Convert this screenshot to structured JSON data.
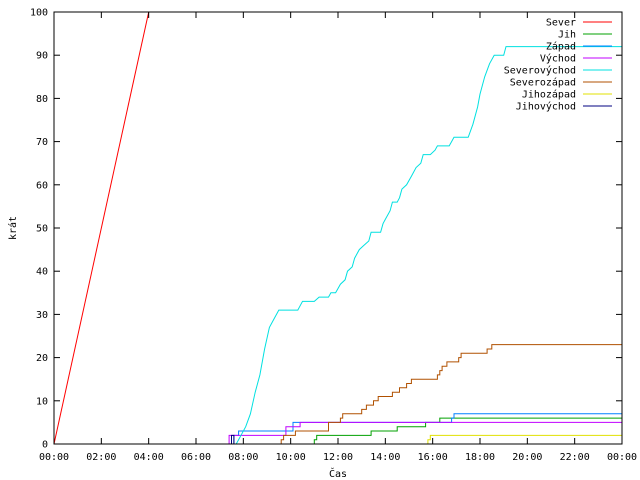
{
  "chart_data": {
    "type": "line",
    "xlabel": "Čas",
    "ylabel": "krát",
    "xlim": [
      0,
      24
    ],
    "ylim": [
      0,
      100
    ],
    "xticks": [
      {
        "v": 0,
        "label": "00:00"
      },
      {
        "v": 2,
        "label": "02:00"
      },
      {
        "v": 4,
        "label": "04:00"
      },
      {
        "v": 6,
        "label": "06:00"
      },
      {
        "v": 8,
        "label": "08:00"
      },
      {
        "v": 10,
        "label": "10:00"
      },
      {
        "v": 12,
        "label": "12:00"
      },
      {
        "v": 14,
        "label": "14:00"
      },
      {
        "v": 16,
        "label": "16:00"
      },
      {
        "v": 18,
        "label": "18:00"
      },
      {
        "v": 20,
        "label": "20:00"
      },
      {
        "v": 22,
        "label": "22:00"
      },
      {
        "v": 24,
        "label": "00:00"
      }
    ],
    "yticks": [
      {
        "v": 0,
        "label": "0"
      },
      {
        "v": 10,
        "label": "10"
      },
      {
        "v": 20,
        "label": "20"
      },
      {
        "v": 30,
        "label": "30"
      },
      {
        "v": 40,
        "label": "40"
      },
      {
        "v": 50,
        "label": "50"
      },
      {
        "v": 60,
        "label": "60"
      },
      {
        "v": 70,
        "label": "70"
      },
      {
        "v": 80,
        "label": "80"
      },
      {
        "v": 90,
        "label": "90"
      },
      {
        "v": 100,
        "label": "100"
      }
    ],
    "legend_position": "top-right",
    "series": [
      {
        "name": "Sever",
        "color": "#ff0000",
        "points": [
          [
            0,
            0
          ],
          [
            4,
            100
          ]
        ]
      },
      {
        "name": "Jih",
        "color": "#00a000",
        "points": [
          [
            0,
            0
          ],
          [
            11,
            0
          ],
          [
            11,
            1
          ],
          [
            11.1,
            1
          ],
          [
            11.1,
            2
          ],
          [
            13.4,
            2
          ],
          [
            13.4,
            3
          ],
          [
            14.5,
            3
          ],
          [
            14.5,
            4
          ],
          [
            15.7,
            4
          ],
          [
            15.7,
            5
          ],
          [
            16.3,
            5
          ],
          [
            16.3,
            6
          ],
          [
            24,
            6
          ]
        ]
      },
      {
        "name": "Západ",
        "color": "#0080ff",
        "points": [
          [
            0,
            0
          ],
          [
            7.6,
            0
          ],
          [
            7.6,
            2
          ],
          [
            7.8,
            2
          ],
          [
            7.8,
            3
          ],
          [
            10.1,
            3
          ],
          [
            10.1,
            5
          ],
          [
            16.8,
            5
          ],
          [
            16.8,
            6
          ],
          [
            16.9,
            6
          ],
          [
            16.9,
            7
          ],
          [
            24,
            7
          ]
        ]
      },
      {
        "name": "Východ",
        "color": "#c000ff",
        "points": [
          [
            0,
            0
          ],
          [
            7.4,
            0
          ],
          [
            7.4,
            2
          ],
          [
            9.8,
            2
          ],
          [
            9.8,
            4
          ],
          [
            10.4,
            4
          ],
          [
            10.4,
            5
          ],
          [
            24,
            5
          ]
        ]
      },
      {
        "name": "Severovýchod",
        "color": "#00e0e0",
        "points": [
          [
            0,
            0
          ],
          [
            7.7,
            0
          ],
          [
            7.8,
            1
          ],
          [
            8.1,
            4
          ],
          [
            8.3,
            7
          ],
          [
            8.5,
            12
          ],
          [
            8.7,
            16
          ],
          [
            8.9,
            22
          ],
          [
            9.1,
            27
          ],
          [
            9.3,
            29
          ],
          [
            9.5,
            31
          ],
          [
            10.3,
            31
          ],
          [
            10.4,
            32
          ],
          [
            10.5,
            33
          ],
          [
            11.0,
            33
          ],
          [
            11.2,
            34
          ],
          [
            11.6,
            34
          ],
          [
            11.7,
            35
          ],
          [
            11.9,
            35
          ],
          [
            12.0,
            36
          ],
          [
            12.1,
            37
          ],
          [
            12.3,
            38
          ],
          [
            12.4,
            40
          ],
          [
            12.6,
            41
          ],
          [
            12.7,
            43
          ],
          [
            12.9,
            45
          ],
          [
            13.1,
            46
          ],
          [
            13.3,
            47
          ],
          [
            13.4,
            49
          ],
          [
            13.8,
            49
          ],
          [
            13.9,
            51
          ],
          [
            14.0,
            52
          ],
          [
            14.2,
            54
          ],
          [
            14.3,
            56
          ],
          [
            14.5,
            56
          ],
          [
            14.6,
            57
          ],
          [
            14.7,
            59
          ],
          [
            14.9,
            60
          ],
          [
            15.1,
            62
          ],
          [
            15.3,
            64
          ],
          [
            15.5,
            65
          ],
          [
            15.6,
            67
          ],
          [
            15.9,
            67
          ],
          [
            16.1,
            68
          ],
          [
            16.2,
            69
          ],
          [
            16.7,
            69
          ],
          [
            16.8,
            70
          ],
          [
            16.9,
            71
          ],
          [
            17.5,
            71
          ],
          [
            17.7,
            74
          ],
          [
            17.9,
            78
          ],
          [
            18.0,
            81
          ],
          [
            18.2,
            85
          ],
          [
            18.4,
            88
          ],
          [
            18.6,
            90
          ],
          [
            19.0,
            90
          ],
          [
            19.1,
            92
          ],
          [
            24,
            92
          ]
        ]
      },
      {
        "name": "Severozápad",
        "color": "#b05000",
        "points": [
          [
            0,
            0
          ],
          [
            9.6,
            0
          ],
          [
            9.6,
            1
          ],
          [
            9.7,
            1
          ],
          [
            9.7,
            2
          ],
          [
            10.2,
            2
          ],
          [
            10.2,
            3
          ],
          [
            11.6,
            3
          ],
          [
            11.6,
            5
          ],
          [
            12.1,
            5
          ],
          [
            12.1,
            6
          ],
          [
            12.2,
            6
          ],
          [
            12.2,
            7
          ],
          [
            13.0,
            7
          ],
          [
            13.0,
            8
          ],
          [
            13.2,
            8
          ],
          [
            13.2,
            9
          ],
          [
            13.5,
            9
          ],
          [
            13.5,
            10
          ],
          [
            13.7,
            10
          ],
          [
            13.7,
            11
          ],
          [
            14.3,
            11
          ],
          [
            14.3,
            12
          ],
          [
            14.6,
            12
          ],
          [
            14.6,
            13
          ],
          [
            14.9,
            13
          ],
          [
            14.9,
            14
          ],
          [
            15.1,
            14
          ],
          [
            15.1,
            15
          ],
          [
            16.2,
            15
          ],
          [
            16.2,
            16
          ],
          [
            16.3,
            16
          ],
          [
            16.3,
            17
          ],
          [
            16.4,
            17
          ],
          [
            16.4,
            18
          ],
          [
            16.6,
            18
          ],
          [
            16.6,
            19
          ],
          [
            17.1,
            19
          ],
          [
            17.1,
            20
          ],
          [
            17.2,
            20
          ],
          [
            17.2,
            21
          ],
          [
            18.3,
            21
          ],
          [
            18.3,
            22
          ],
          [
            18.5,
            22
          ],
          [
            18.5,
            23
          ],
          [
            24,
            23
          ]
        ]
      },
      {
        "name": "Jihozápad",
        "color": "#e0e000",
        "points": [
          [
            0,
            0
          ],
          [
            15.8,
            0
          ],
          [
            15.8,
            1
          ],
          [
            15.9,
            1
          ],
          [
            15.9,
            2
          ],
          [
            24,
            2
          ]
        ]
      },
      {
        "name": "Jihovýchod",
        "color": "#000080",
        "points": [
          [
            0,
            0
          ],
          [
            7.5,
            0
          ],
          [
            7.5,
            2
          ],
          [
            7.6,
            2
          ],
          [
            7.6,
            0
          ],
          [
            24,
            0
          ]
        ]
      }
    ]
  }
}
